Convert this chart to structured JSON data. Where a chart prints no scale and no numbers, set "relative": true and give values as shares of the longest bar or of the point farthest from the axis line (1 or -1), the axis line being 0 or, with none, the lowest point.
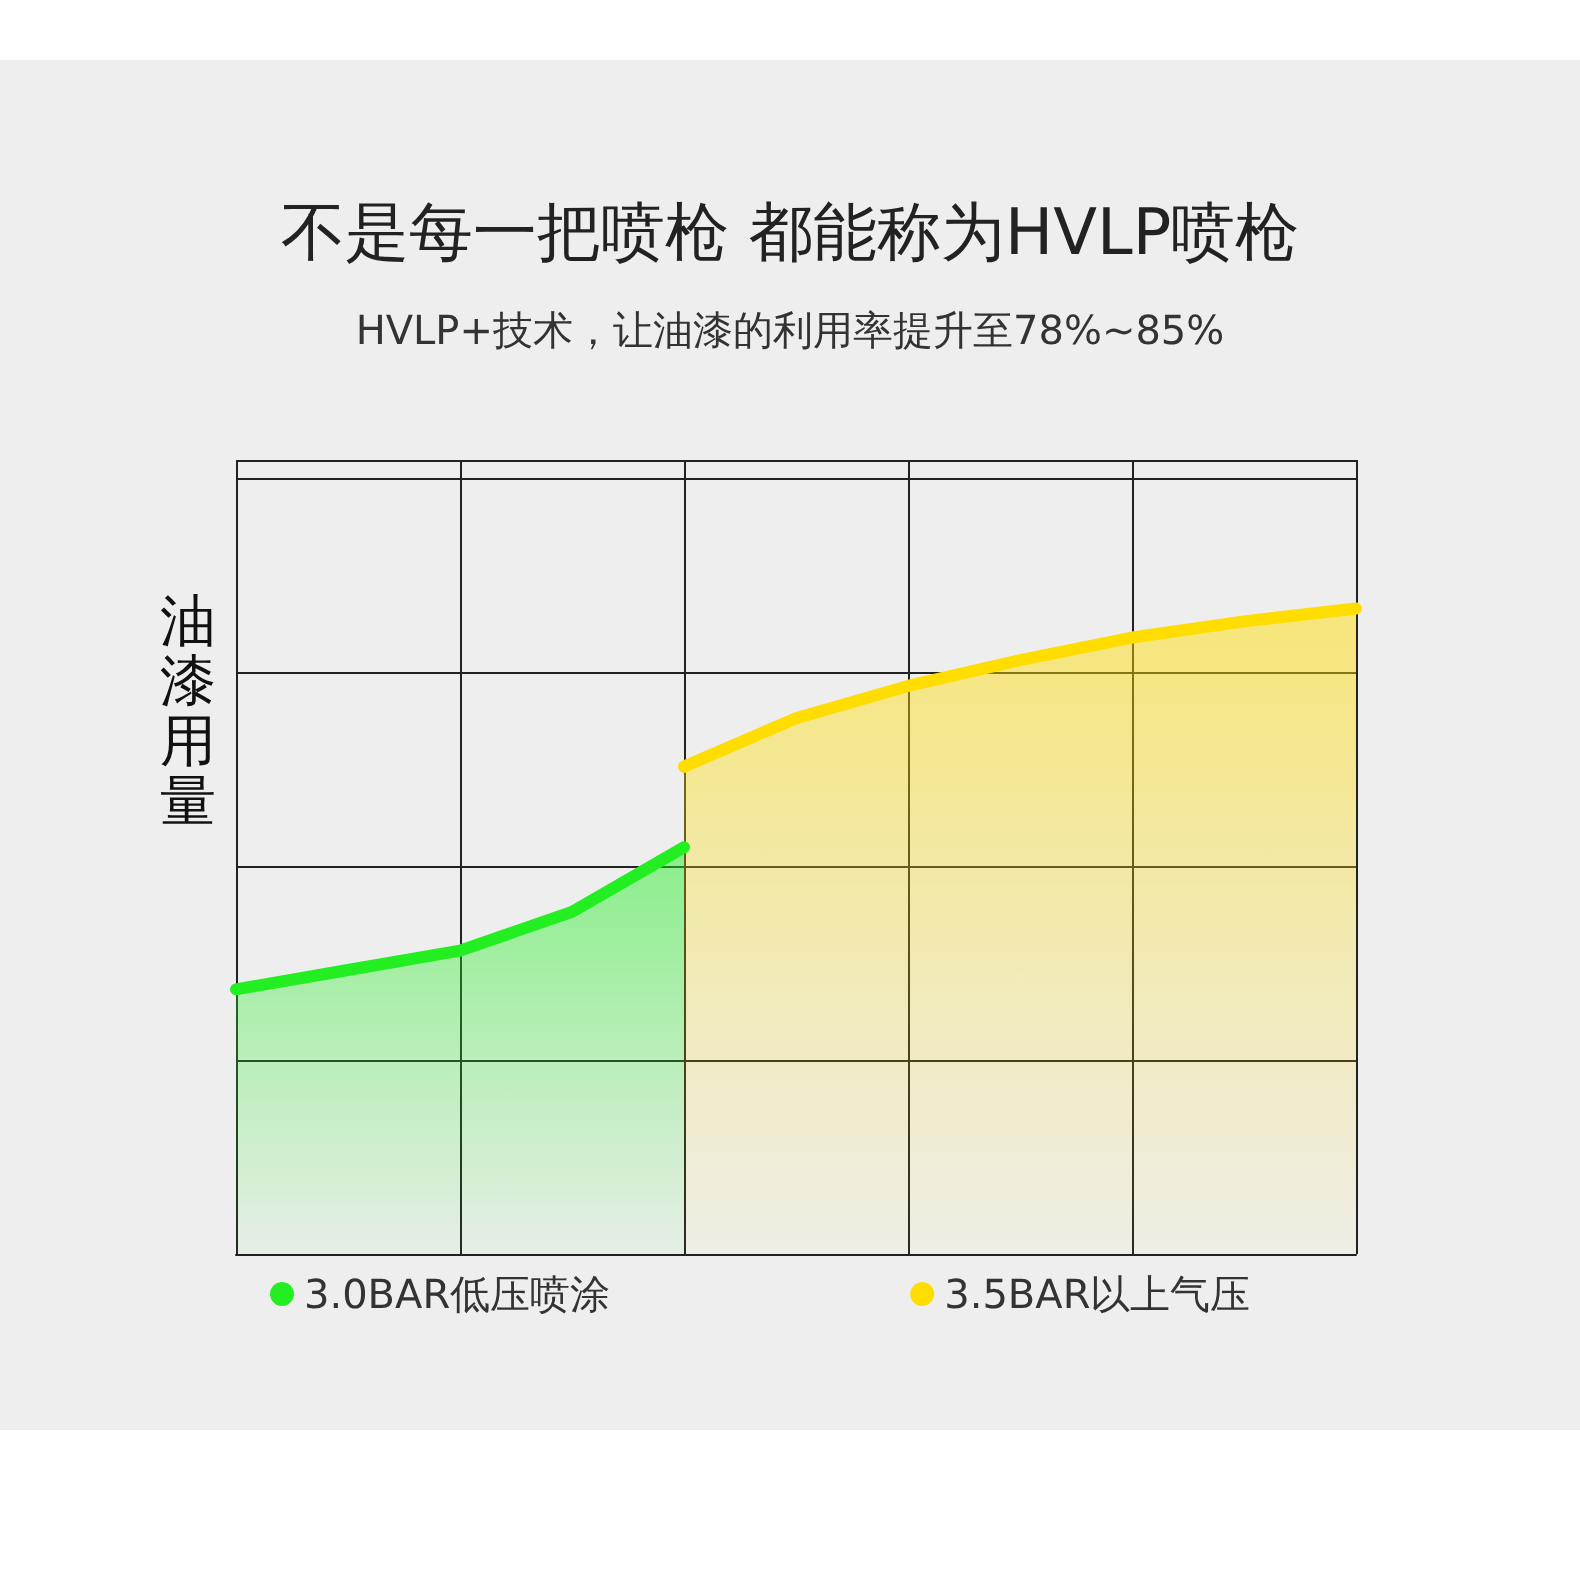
{
  "chart_data": {
    "type": "area",
    "title": "不是每一把喷枪 都能称为HVLP喷枪",
    "subtitle": "HVLP+技术，让油漆的利用率提升至78%~85%",
    "ylabel": "油漆用量",
    "relative": true,
    "categories": [
      null,
      null,
      null,
      null,
      null,
      null,
      null,
      null,
      null,
      null,
      null
    ],
    "series": [
      {
        "name": "3.0BAR低压喷涂",
        "color": "#22ee22",
        "values": [
          0.41,
          0.44,
          0.47,
          0.53,
          0.63,
          null,
          null,
          null,
          null,
          null,
          null
        ]
      },
      {
        "name": "3.5BAR以上气压",
        "color": "#ffdd00",
        "values": [
          null,
          null,
          null,
          null,
          0.755,
          0.83,
          0.88,
          0.92,
          0.955,
          0.98,
          1.0
        ]
      }
    ],
    "grid": true,
    "legend": "bottom",
    "marker": "none",
    "line_style": "solid"
  }
}
